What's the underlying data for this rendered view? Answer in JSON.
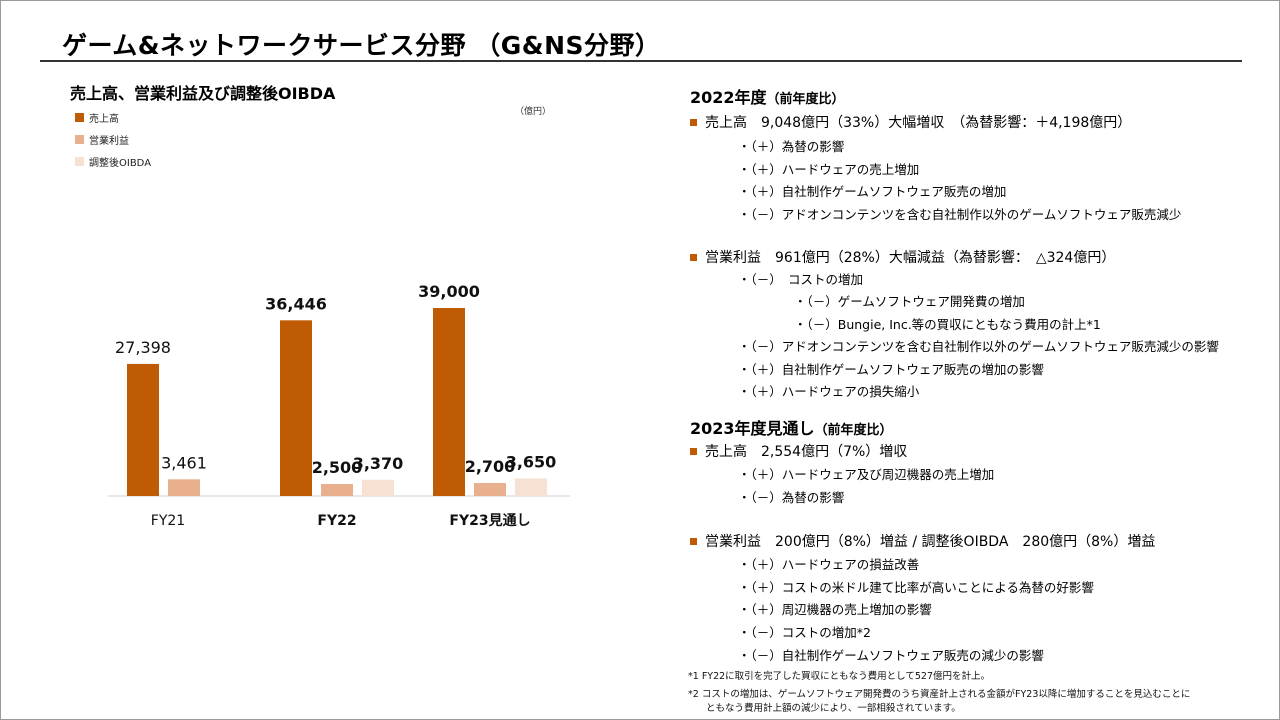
{
  "page": {
    "title": "ゲーム&ネットワークサービス分野 （G&NS分野）"
  },
  "chart_data": {
    "type": "bar",
    "title": "売上高、営業利益及び調整後OIBDA",
    "unit": "（億円）",
    "categories": [
      "FY21",
      "FY22",
      "FY23見通し"
    ],
    "series": [
      {
        "name": "売上高",
        "values": [
          27398,
          36446,
          39000
        ],
        "labels": [
          "27,398",
          "36,446",
          "39,000"
        ],
        "color": "#bf5b04"
      },
      {
        "name": "営業利益",
        "values": [
          3461,
          2500,
          2700
        ],
        "labels": [
          "3,461",
          "2,500",
          "2,700"
        ],
        "color": "#e8b08c"
      },
      {
        "name": "調整後OIBDA",
        "values": [
          null,
          3370,
          3650
        ],
        "labels": [
          "",
          "3,370",
          "3,650"
        ],
        "color": "#f6e1d3"
      }
    ],
    "bold_categories": [
      false,
      true,
      true
    ],
    "grid": false,
    "legend_position": "top-left"
  },
  "right": {
    "fy22": {
      "title": "2022年度",
      "title_suffix": "（前年度比）",
      "sales": "売上高　9,048億円（33%）大幅増収　（為替影響：＋4,198億円）",
      "sales_items": [
        "・（＋）為替の影響",
        "・（＋）ハードウェアの売上増加",
        "・（＋）自社制作ゲームソフトウェア販売の増加",
        "・（－）アドオンコンテンツを含む自社制作以外のゲームソフトウェア販売減少"
      ],
      "op": "営業利益　961億円（28%）大幅減益（為替影響：　△324億円）",
      "op_items": [
        "・（－）　コストの増加",
        "・（－）ゲームソフトウェア開発費の増加",
        "・（－）Bungie, Inc.等の買収にともなう費用の計上*1",
        "・（－）アドオンコンテンツを含む自社制作以外のゲームソフトウェア販売減少の影響",
        "・（＋）自社制作ゲームソフトウェア販売の増加の影響",
        "・（＋）ハードウェアの損失縮小"
      ]
    },
    "fy23": {
      "title": "2023年度見通し",
      "title_suffix": "（前年度比）",
      "sales": "売上高　2,554億円（7%）増収",
      "sales_items": [
        "・（＋）ハードウェア及び周辺機器の売上増加",
        "・（－）為替の影響"
      ],
      "op": "営業利益　200億円（8%）増益 / 調整後OIBDA　280億円（8%）増益",
      "op_items": [
        "・（＋）ハードウェアの損益改善",
        "・（＋）コストの米ドル建て比率が高いことによる為替の好影響",
        "・（＋）周辺機器の売上増加の影響",
        "・（－）コストの増加*2",
        "・（－）自社制作ゲームソフトウェア販売の減少の影響"
      ]
    }
  },
  "footnotes": [
    "*1 FY22に取引を完了した買収にともなう費用として527億円を計上。",
    "*2 コストの増加は、ゲームソフトウェア開発費のうち資産計上される金額がFY23以降に増加することを見込むことに",
    "ともなう費用計上額の減少により、一部相殺されています。"
  ]
}
